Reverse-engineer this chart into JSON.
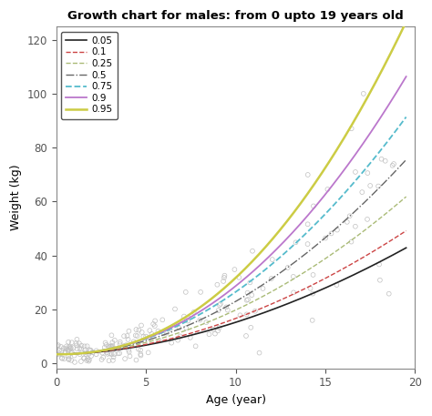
{
  "title": "Growth chart for males: from 0 upto 19 years old",
  "xlabel": "Age (year)",
  "ylabel": "Weight (kg)",
  "xlim": [
    0,
    20
  ],
  "ylim": [
    -2,
    125
  ],
  "xticks": [
    0,
    5,
    10,
    15,
    20
  ],
  "yticks": [
    0,
    20,
    40,
    60,
    80,
    100,
    120
  ],
  "quantiles": [
    0.05,
    0.1,
    0.25,
    0.5,
    0.75,
    0.9,
    0.95
  ],
  "colors": [
    "#222222",
    "#cc4444",
    "#aabb77",
    "#666666",
    "#55bbcc",
    "#bb77cc",
    "#cccc44"
  ],
  "linestyles_mpl": [
    "-",
    "--",
    "--",
    "-.",
    "--",
    "-",
    "-"
  ],
  "linewidths": [
    1.2,
    1.0,
    1.0,
    1.0,
    1.3,
    1.3,
    1.8
  ],
  "background": "#ffffff",
  "scatter_color": "#c0c0c0",
  "scatter_size": 12,
  "end_vals": [
    41,
    47,
    59,
    72,
    87,
    101,
    120
  ],
  "start_val": 3.2,
  "alphas": [
    1.8,
    1.85,
    1.9,
    1.95,
    2.0,
    2.1,
    2.2
  ],
  "seed": 42
}
